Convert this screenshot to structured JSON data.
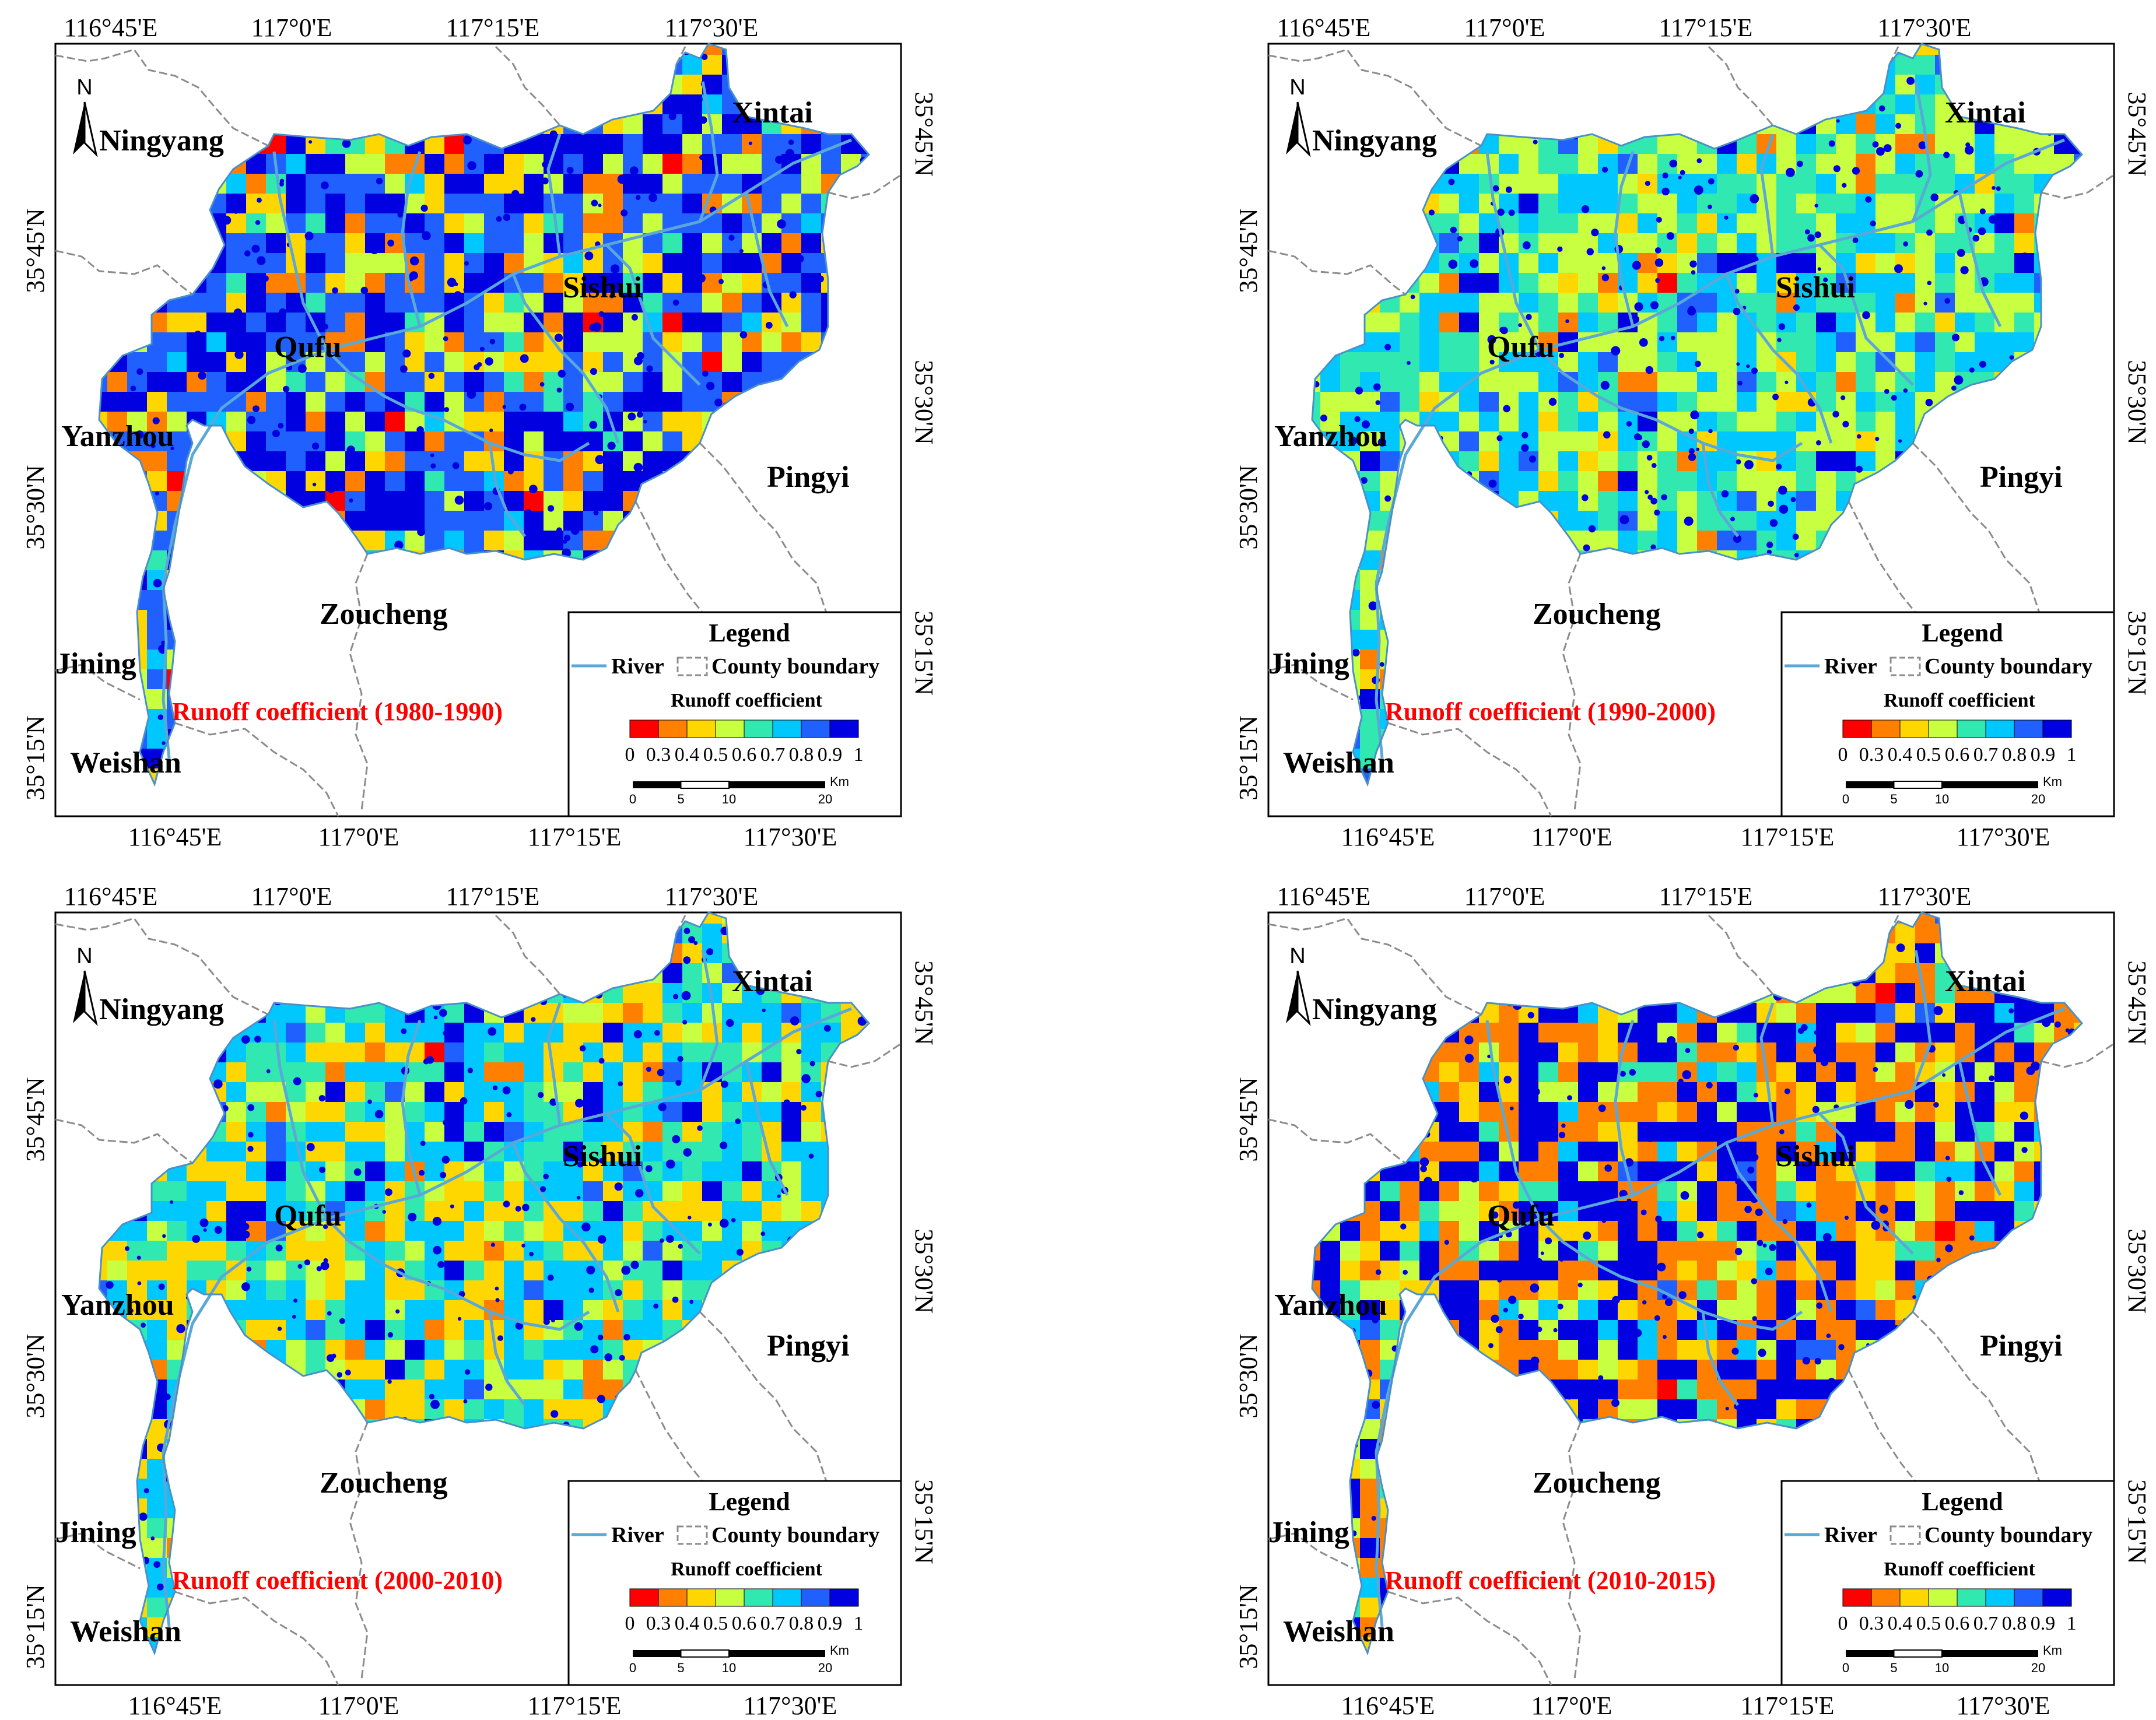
{
  "colors": {
    "class_colors": [
      "#ff0000",
      "#ff8000",
      "#ffd700",
      "#c8ff40",
      "#30e8b0",
      "#00c8ff",
      "#2060ff",
      "#0000e0"
    ],
    "river": "#5aa8d8",
    "county_boundary": "#8c8c8c",
    "title": "#ff0000"
  },
  "top_ticks": [
    "116°45'E",
    "117°0'E",
    "117°15'E",
    "117°30'E"
  ],
  "bottom_ticks": [
    "116°45'E",
    "117°0'E",
    "117°15'E",
    "117°30'E"
  ],
  "left_ticks": [
    "35°45'N",
    "35°30'N",
    "35°15'N"
  ],
  "right_ticks": [
    "35°45'N",
    "35°30'N",
    "35°15'N"
  ],
  "north_label": "N",
  "counties": {
    "ningyang": "Ningyang",
    "xintai": "Xintai",
    "sishui": "Sishui",
    "qufu": "Qufu",
    "yanzhou": "Yanzhou",
    "pingyi": "Pingyi",
    "zoucheng": "Zoucheng",
    "jining": "Jining",
    "weishan": "Weishan"
  },
  "legend": {
    "title": "Legend",
    "river_label": "River",
    "county_label": "County boundary",
    "ramp_title": "Runoff coefficient",
    "ramp_labels": [
      "0",
      "0.3",
      "0.4",
      "0.5",
      "0.6",
      "0.7",
      "0.8",
      "0.9",
      "1"
    ],
    "scale_labels": [
      "0",
      "5",
      "10",
      "20"
    ],
    "scale_unit": "Km"
  },
  "panels": [
    {
      "title": "Runoff coefficient  (1980-1990)",
      "weights": [
        0.02,
        0.1,
        0.1,
        0.16,
        0.04,
        0.05,
        0.3,
        0.23
      ]
    },
    {
      "title": "Runoff coefficient  (1990-2000)",
      "weights": [
        0.005,
        0.03,
        0.05,
        0.3,
        0.22,
        0.3,
        0.05,
        0.045
      ]
    },
    {
      "title": "Runoff coefficient  (2000-2010)",
      "weights": [
        0.005,
        0.04,
        0.25,
        0.12,
        0.16,
        0.34,
        0.03,
        0.055
      ]
    },
    {
      "title": "Runoff coefficient  (2010-2015)",
      "weights": [
        0.005,
        0.34,
        0.13,
        0.1,
        0.07,
        0.05,
        0.02,
        0.285
      ]
    }
  ]
}
